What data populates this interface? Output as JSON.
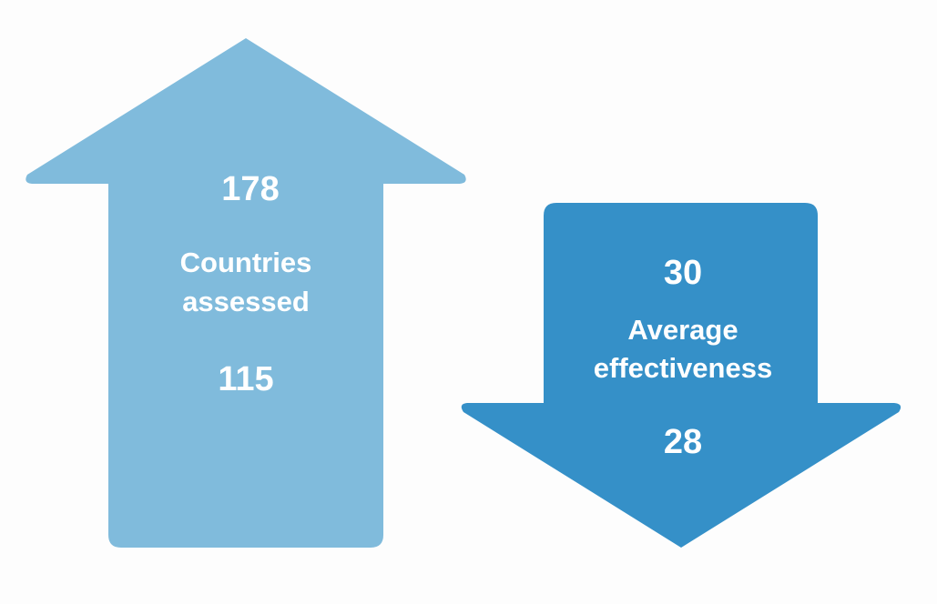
{
  "arrows": [
    {
      "top_value": "178",
      "label": [
        "Countries",
        "assessed"
      ],
      "bottom_value": "115"
    },
    {
      "top_value": "30",
      "label": [
        "Average",
        "effectiveness"
      ],
      "bottom_value": "28"
    }
  ]
}
